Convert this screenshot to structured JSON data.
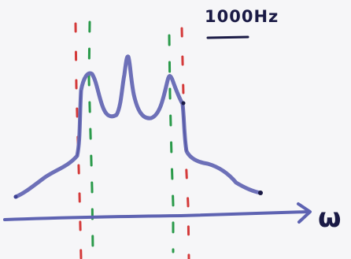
{
  "legend": {
    "label": "1000Hz"
  },
  "axis": {
    "label": "ω"
  },
  "colors": {
    "paper": "#f6f6f8",
    "spectrum_ink": "#6d70b8",
    "axis_ink": "#5e63b2",
    "dark_ink": "#1a1a45",
    "red_marker": "#d43a3a",
    "green_marker": "#2a9a4a"
  }
}
